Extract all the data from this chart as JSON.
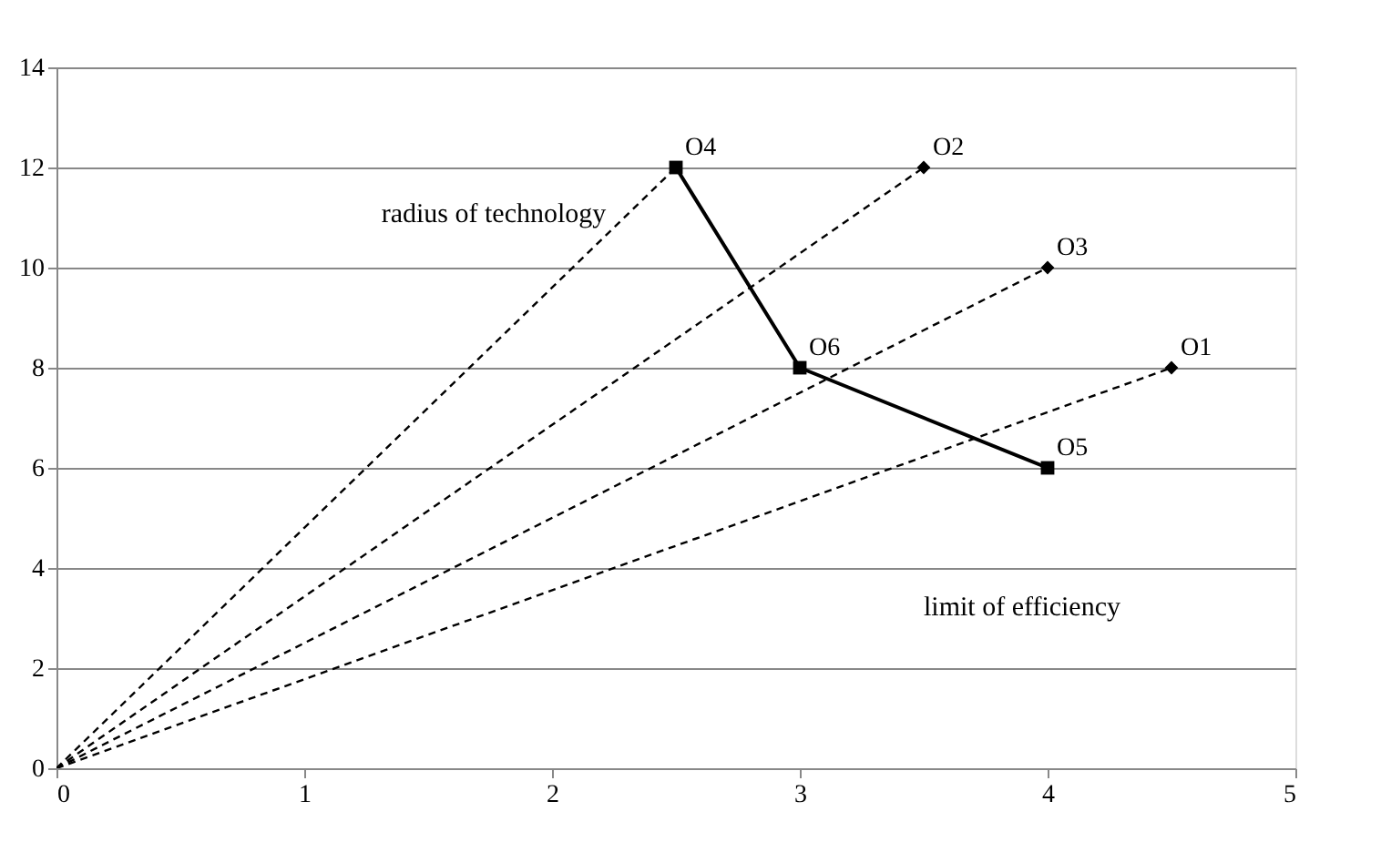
{
  "chart_data": {
    "type": "scatter",
    "xlim": [
      0,
      5
    ],
    "ylim": [
      0,
      14
    ],
    "xticks": [
      0,
      1,
      2,
      3,
      4,
      5
    ],
    "yticks": [
      0,
      2,
      4,
      6,
      8,
      10,
      12,
      14
    ],
    "grid": "y",
    "legend": false,
    "series": [
      {
        "type": "line",
        "line_style": "dashed",
        "marker": "none",
        "color": "#000000",
        "x": [
          0,
          2.5
        ],
        "values": [
          0,
          12
        ]
      },
      {
        "type": "line",
        "line_style": "dashed",
        "marker": "none",
        "color": "#000000",
        "x": [
          0,
          3.5
        ],
        "values": [
          0,
          12
        ]
      },
      {
        "type": "line",
        "line_style": "dashed",
        "marker": "none",
        "color": "#000000",
        "x": [
          0,
          4
        ],
        "values": [
          0,
          10
        ]
      },
      {
        "type": "line",
        "line_style": "dashed",
        "marker": "none",
        "color": "#000000",
        "x": [
          0,
          4.5
        ],
        "values": [
          0,
          8
        ]
      },
      {
        "type": "line",
        "line_style": "solid",
        "marker": "none",
        "color": "#000000",
        "x": [
          2.5,
          3,
          4
        ],
        "values": [
          12,
          8,
          6
        ]
      },
      {
        "marker": "diamond",
        "name": "O1",
        "color": "#000000",
        "x": [
          4.5
        ],
        "values": [
          8
        ]
      },
      {
        "marker": "diamond",
        "name": "O2",
        "color": "#000000",
        "x": [
          3.5
        ],
        "values": [
          12
        ]
      },
      {
        "marker": "diamond",
        "name": "O3",
        "color": "#000000",
        "x": [
          4
        ],
        "values": [
          10
        ]
      },
      {
        "marker": "square",
        "name": "O4",
        "color": "#000000",
        "x": [
          2.5
        ],
        "values": [
          12
        ]
      },
      {
        "marker": "square",
        "name": "O5",
        "color": "#000000",
        "x": [
          4
        ],
        "values": [
          6
        ]
      },
      {
        "marker": "square",
        "name": "O6",
        "color": "#000000",
        "x": [
          3
        ],
        "values": [
          8
        ]
      }
    ],
    "annotations": [
      "radius of technology",
      "limit of efficiency"
    ]
  }
}
